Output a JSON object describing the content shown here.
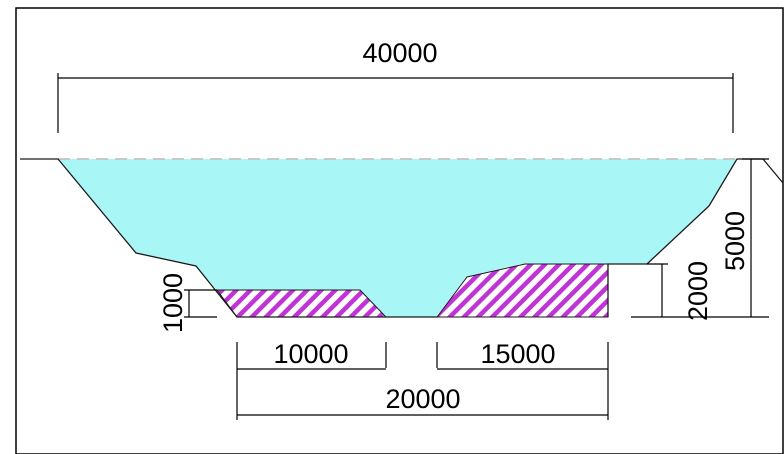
{
  "figure": {
    "colors": {
      "water": "#a9f6f7",
      "hatch_stripe": "#c033d6",
      "hatch_background": "#ffffff",
      "water_line": "#c8c8c8",
      "lines": "#000000"
    },
    "dimensions": {
      "top_width": "40000",
      "total_depth": "5000",
      "berm_height_right": "2000",
      "berm_height_left": "1000",
      "bottom_left_width": "10000",
      "bottom_right_width": "15000",
      "bottom_total_width": "20000"
    }
  }
}
